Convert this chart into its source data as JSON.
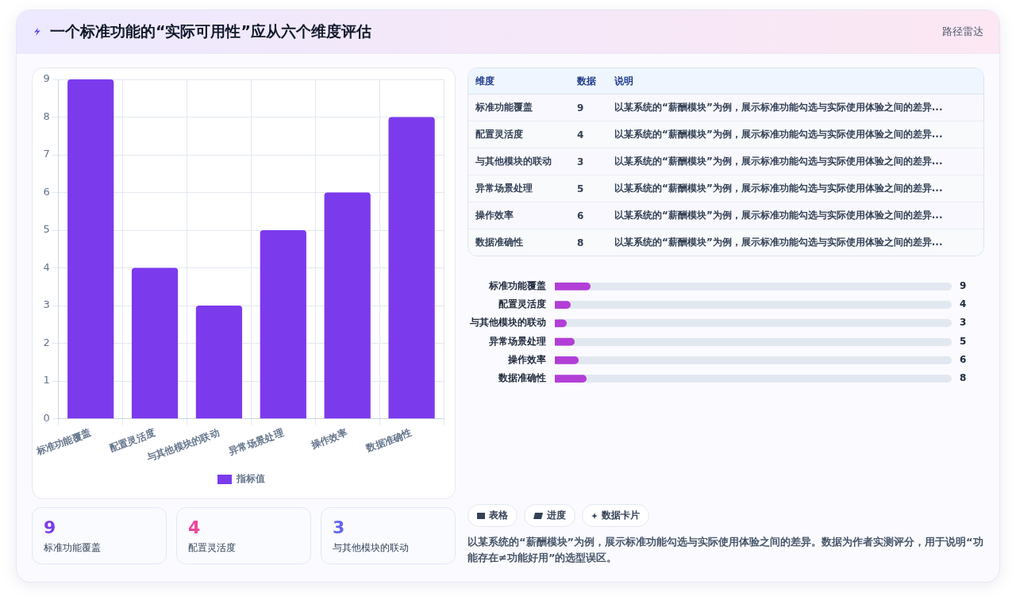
{
  "chart_data": [
    {
      "type": "bar",
      "title": "一个标准功能的“实际可用性”应从六个维度评估",
      "categories": [
        "标准功能覆盖",
        "配置灵活度",
        "与其他模块的联动",
        "异常场景处理",
        "操作效率",
        "数据准确性"
      ],
      "series": [
        {
          "name": "指标值",
          "color": "#7c3aed",
          "values": [
            9,
            4,
            3,
            5,
            6,
            8
          ]
        }
      ],
      "ylim": [
        0,
        9
      ],
      "yticks": [
        0,
        1,
        2,
        3,
        4,
        5,
        6,
        7,
        8,
        9
      ],
      "grid": true,
      "legend": "bottom",
      "annotations": [
        "路径雷达",
        "表格",
        "进度",
        "数据卡片",
        "以某系统的“薪酬模块”为例，展示标准功能勾选与实际使用体验之间的差异。数据为作者实测评分，用于说明“功能存在≠功能好用”的选型误区。"
      ]
    },
    {
      "type": "other",
      "categories": [
        "标准功能覆盖",
        "配置灵活度",
        "与其他模块的联动"
      ],
      "values": [
        9,
        4,
        3
      ],
      "data_labels": true
    },
    {
      "type": "other",
      "categories": [
        "标准功能覆盖",
        "配置灵活度",
        "与其他模块的联动",
        "异常场景处理",
        "操作效率",
        "数据准确性"
      ],
      "values": [
        9,
        4,
        3,
        5,
        6,
        8
      ],
      "data_labels": true,
      "annotations": [
        "维度",
        "数据",
        "说明",
        "以某系统的“薪酬模块”为例，展示标准功能勾选与实际使用体验之间的差异..."
      ]
    },
    {
      "type": "bar",
      "orientation": "horizontal",
      "categories": [
        "标准功能覆盖",
        "配置灵活度",
        "与其他模块的联动",
        "异常场景处理",
        "操作效率",
        "数据准确性"
      ],
      "values": [
        9,
        4,
        3,
        5,
        6,
        8
      ],
      "color": "#b23ed6",
      "xlim": [
        0,
        100
      ],
      "tick_labels": "y",
      "data_labels": true
    }
  ]
}
